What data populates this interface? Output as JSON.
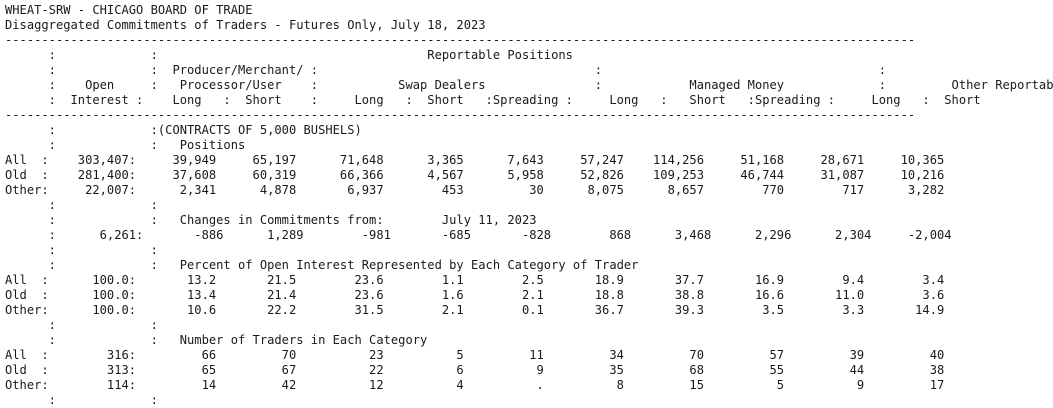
{
  "report": {
    "lines": [
      "WHEAT-SRW - CHICAGO BOARD OF TRADE",
      "Disaggregated Commitments of Traders - Futures Only, July 18, 2023",
      "-----------------------------------------------------------------------------------------------------------------------------",
      "      :             :                                     Reportable Positions",
      "      :             :  Producer/Merchant/ :                                      :                                      :",
      "      :    Open     :   Processor/User    :           Swap Dealers               :            Managed Money             :         Other Reportab",
      "      :  Interest :    Long   :  Short    :     Long   :  Short   :Spreading :     Long   :   Short   :Spreading :     Long   :  Short",
      "-----------------------------------------------------------------------------------------------------------------------------",
      "      :             :(CONTRACTS OF 5,000 BUSHELS)",
      "      :             :   Positions",
      "All  :    303,407:     39,949     65,197      71,648      3,365      7,643     57,247    114,256     51,168     28,671     10,365",
      "Old  :    281,400:     37,608     60,319      66,366      4,567      5,958     52,826    109,253     46,744     31,087     10,216",
      "Other:     22,007:      2,341      4,878       6,937        453         30      8,075      8,657        770        717      3,282",
      "      :             :",
      "      :             :   Changes in Commitments from:        July 11, 2023",
      "      :      6,261:       -886      1,289        -981       -685       -828        868      3,468      2,296      2,304     -2,004",
      "      :             :",
      "      :             :   Percent of Open Interest Represented by Each Category of Trader",
      "All  :      100.0:       13.2       21.5        23.6        1.1        2.5       18.9       37.7       16.9        9.4        3.4",
      "Old  :      100.0:       13.4       21.4        23.6        1.6        2.1       18.8       38.8       16.6       11.0        3.6",
      "Other:      100.0:       10.6       22.2        31.5        2.1        0.1       36.7       39.3        3.5        3.3       14.9",
      "      :             :",
      "      :             :   Number of Traders in Each Category",
      "All  :        316:         66         70          23          5         11         34         70         57         39         40",
      "Old  :        313:         65         67          22          6          9         35         68         55         44         38",
      "Other:        114:         14         42          12          4          .          8         15          5          9         17",
      "      :             :"
    ]
  }
}
